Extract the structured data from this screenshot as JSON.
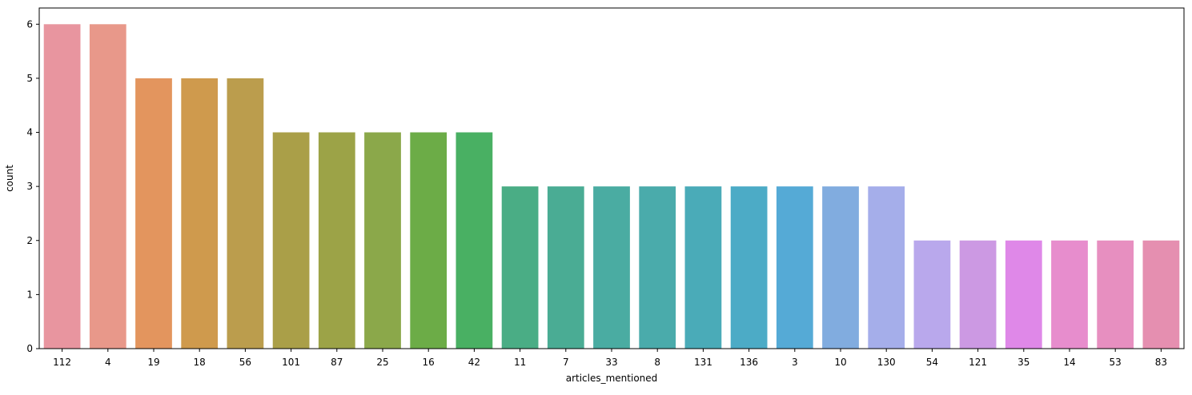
{
  "chart_data": {
    "type": "bar",
    "xlabel": "articles_mentioned",
    "ylabel": "count",
    "ylim": [
      0,
      6.3
    ],
    "yticks": [
      0,
      1,
      2,
      3,
      4,
      5,
      6
    ],
    "grid": false,
    "categories": [
      "112",
      "4",
      "19",
      "18",
      "56",
      "101",
      "87",
      "25",
      "16",
      "42",
      "11",
      "7",
      "33",
      "8",
      "131",
      "136",
      "3",
      "10",
      "130",
      "54",
      "121",
      "35",
      "14",
      "53",
      "83"
    ],
    "values": [
      6,
      6,
      5,
      5,
      5,
      4,
      4,
      4,
      4,
      4,
      3,
      3,
      3,
      3,
      3,
      3,
      3,
      3,
      3,
      2,
      2,
      2,
      2,
      2,
      2
    ],
    "colors": [
      "#e8959f",
      "#e8988a",
      "#e3955e",
      "#cf9a4d",
      "#bb9d4d",
      "#aa9f48",
      "#9ca347",
      "#8ba84a",
      "#6cac47",
      "#49b063",
      "#4aad85",
      "#4aac94",
      "#4aaca2",
      "#4aabab",
      "#4aabb8",
      "#4cabc6",
      "#55aad6",
      "#81acdf",
      "#a5aeea",
      "#b9a8ec",
      "#cc99e3",
      "#df88e8",
      "#e78dcd",
      "#e78fc0",
      "#e58fb0"
    ]
  }
}
